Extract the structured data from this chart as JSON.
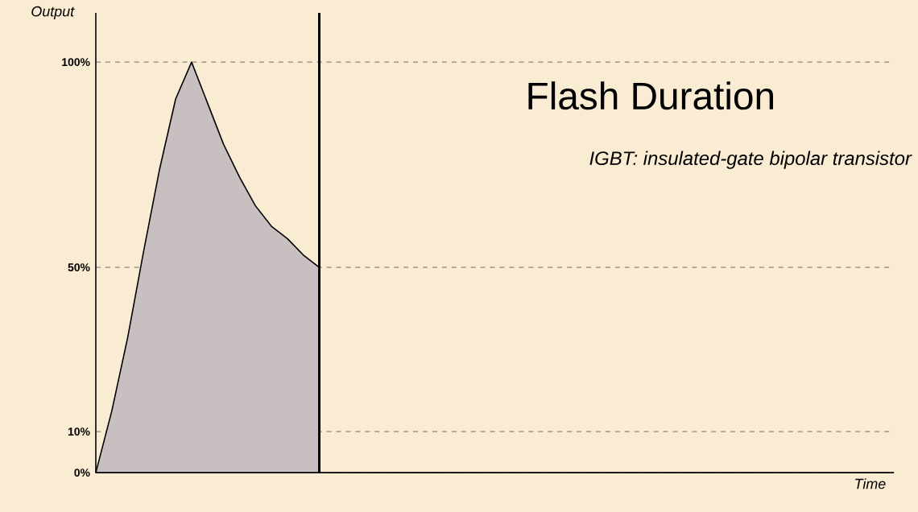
{
  "chart_data": {
    "type": "area",
    "title": "Flash Duration",
    "subtitle": "IGBT: insulated-gate bipolar transistor",
    "xlabel": "Time",
    "ylabel": "Output",
    "categories": [
      null,
      null,
      null,
      null,
      null,
      null,
      null,
      null,
      null,
      null,
      null,
      null,
      null,
      null,
      null,
      null,
      null,
      null,
      null,
      null,
      null,
      null,
      null,
      null,
      null,
      null,
      null,
      null,
      null,
      null,
      null,
      null,
      null,
      null,
      null,
      null,
      null,
      null,
      null,
      null,
      null,
      null,
      null,
      null,
      null,
      null,
      null,
      null,
      null,
      null,
      null
    ],
    "values": [
      0,
      15,
      33,
      54,
      74,
      91,
      100,
      90,
      80,
      72,
      65,
      60,
      57,
      53,
      50,
      null,
      null,
      null,
      null,
      null,
      null,
      null,
      null,
      null,
      null,
      null,
      null,
      null,
      null,
      null,
      null,
      null,
      null,
      null,
      null,
      null,
      null,
      null,
      null,
      null,
      null,
      null,
      null,
      null,
      null,
      null,
      null,
      null,
      null,
      null,
      null
    ],
    "color": "#c8c0c0",
    "ylim": [
      0,
      112
    ],
    "yticks": [
      {
        "value": 0,
        "label": "0%"
      },
      {
        "value": 10,
        "label": "10%"
      },
      {
        "value": 50,
        "label": "50%"
      },
      {
        "value": 100,
        "label": "100%"
      }
    ],
    "tick_labels": "y",
    "grid": "y"
  }
}
